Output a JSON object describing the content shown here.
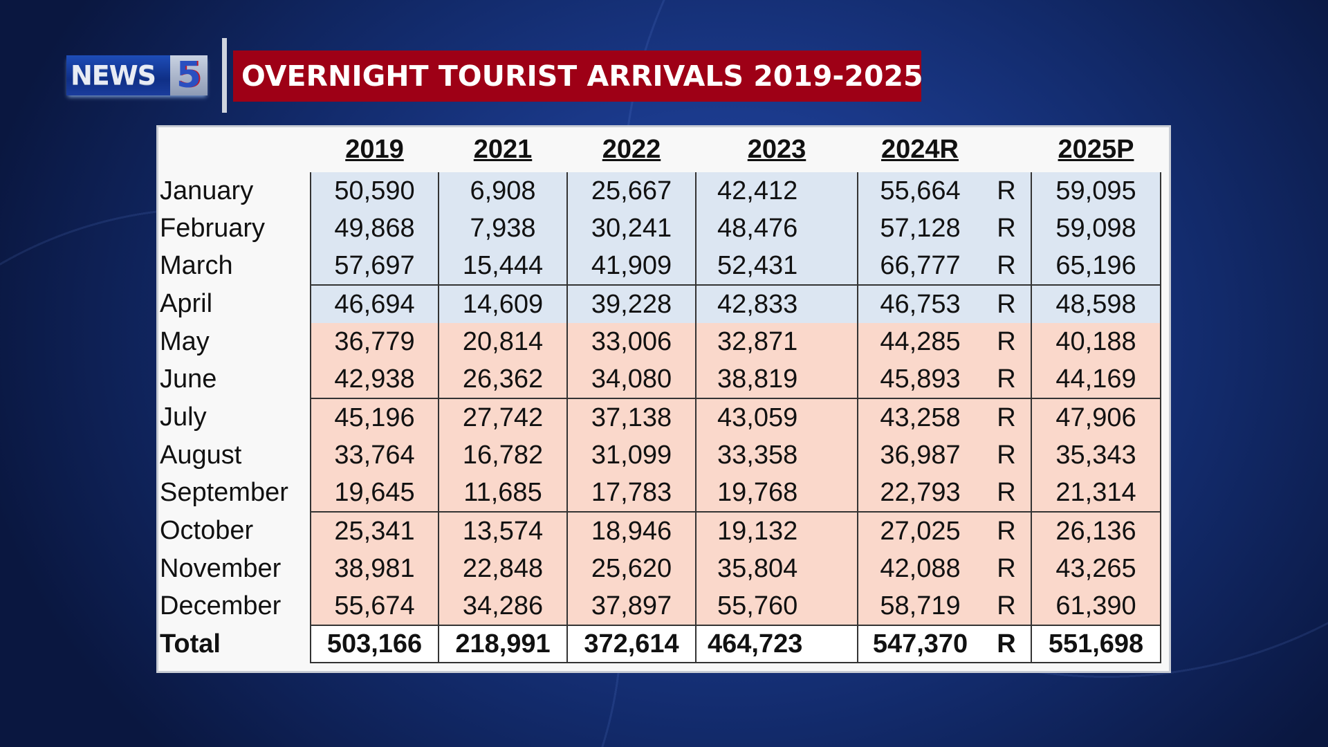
{
  "logo": {
    "text": "NEWS",
    "number": "5"
  },
  "banner": {
    "title": "OVERNIGHT TOURIST ARRIVALS 2019-2025"
  },
  "colors": {
    "banner": "#9e0016",
    "q1_fill": "#dce6f2",
    "rest_fill": "#fad8cb"
  },
  "table": {
    "headers": [
      "2019",
      "2021",
      "2022",
      "2023",
      "2024R",
      "",
      "2025P"
    ],
    "rows": [
      {
        "label": "January",
        "values": [
          "50,590",
          "6,908",
          "25,667",
          "42,412",
          "55,664",
          "R",
          "59,095"
        ]
      },
      {
        "label": "February",
        "values": [
          "49,868",
          "7,938",
          "30,241",
          "48,476",
          "57,128",
          "R",
          "59,098"
        ]
      },
      {
        "label": "March",
        "values": [
          "57,697",
          "15,444",
          "41,909",
          "52,431",
          "66,777",
          "R",
          "65,196"
        ]
      },
      {
        "label": "April",
        "values": [
          "46,694",
          "14,609",
          "39,228",
          "42,833",
          "46,753",
          "R",
          "48,598"
        ]
      },
      {
        "label": "May",
        "values": [
          "36,779",
          "20,814",
          "33,006",
          "32,871",
          "44,285",
          "R",
          "40,188"
        ]
      },
      {
        "label": "June",
        "values": [
          "42,938",
          "26,362",
          "34,080",
          "38,819",
          "45,893",
          "R",
          "44,169"
        ]
      },
      {
        "label": "July",
        "values": [
          "45,196",
          "27,742",
          "37,138",
          "43,059",
          "43,258",
          "R",
          "47,906"
        ]
      },
      {
        "label": "August",
        "values": [
          "33,764",
          "16,782",
          "31,099",
          "33,358",
          "36,987",
          "R",
          "35,343"
        ]
      },
      {
        "label": "September",
        "values": [
          "19,645",
          "11,685",
          "17,783",
          "19,768",
          "22,793",
          "R",
          "21,314"
        ]
      },
      {
        "label": "October",
        "values": [
          "25,341",
          "13,574",
          "18,946",
          "19,132",
          "27,025",
          "R",
          "26,136"
        ]
      },
      {
        "label": "November",
        "values": [
          "38,981",
          "22,848",
          "25,620",
          "35,804",
          "42,088",
          "R",
          "43,265"
        ]
      },
      {
        "label": "December",
        "values": [
          "55,674",
          "34,286",
          "37,897",
          "55,760",
          "58,719",
          "R",
          "61,390"
        ]
      }
    ],
    "total": {
      "label": "Total",
      "values": [
        "503,166",
        "218,991",
        "372,614",
        "464,723",
        "547,370",
        "R",
        "551,698"
      ]
    }
  }
}
